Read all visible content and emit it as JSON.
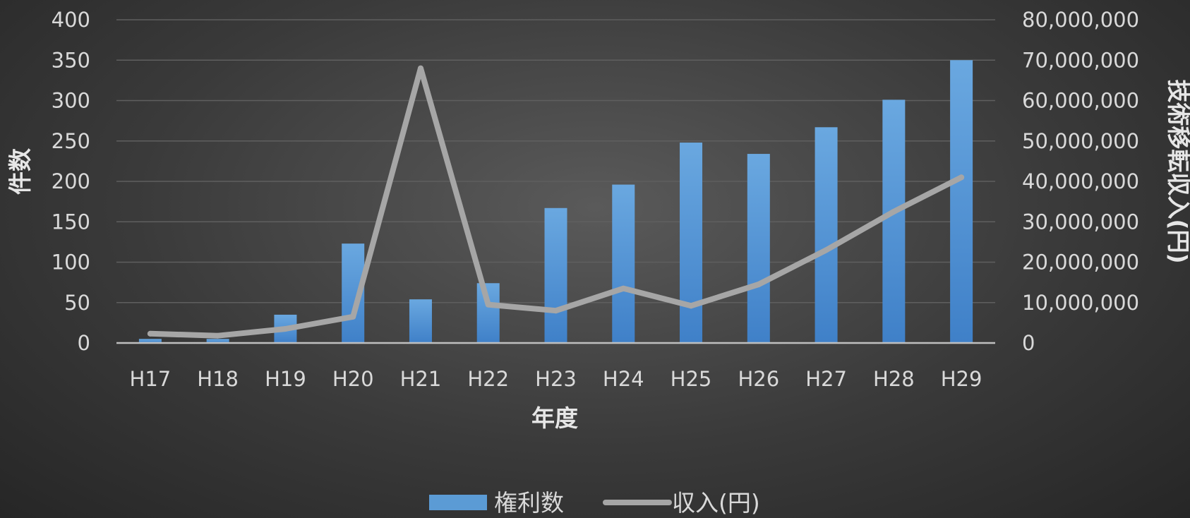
{
  "chart_data": {
    "type": "bar+line",
    "categories": [
      "H17",
      "H18",
      "H19",
      "H20",
      "H21",
      "H22",
      "H23",
      "H24",
      "H25",
      "H26",
      "H27",
      "H28",
      "H29"
    ],
    "series": [
      {
        "name": "権利数",
        "type": "bar",
        "axis": "left",
        "values": [
          5,
          5,
          35,
          123,
          54,
          74,
          167,
          196,
          248,
          234,
          267,
          301,
          350
        ]
      },
      {
        "name": "収入(円)",
        "type": "line",
        "axis": "right",
        "values": [
          2300000,
          1800000,
          3500000,
          6500000,
          68000000,
          9500000,
          8000000,
          13500000,
          9200000,
          14500000,
          23000000,
          32500000,
          41000000
        ]
      }
    ],
    "xlabel": "年度",
    "ylabel": "件数",
    "y2label": "技術移転収入(円)",
    "ylim": [
      0,
      400
    ],
    "y2lim": [
      0,
      80000000
    ],
    "yticks": [
      "0",
      "50",
      "100",
      "150",
      "200",
      "250",
      "300",
      "350",
      "400"
    ],
    "y2ticks": [
      "0",
      "10,000,000",
      "20,000,000",
      "30,000,000",
      "40,000,000",
      "50,000,000",
      "60,000,000",
      "70,000,000",
      "80,000,000"
    ],
    "grid": true,
    "legend": "bottom",
    "colors": {
      "bar": "#5b9bd5",
      "line": "#a6a6a6",
      "grid": "#5f5f5f",
      "axis": "#bfbfbf"
    }
  }
}
